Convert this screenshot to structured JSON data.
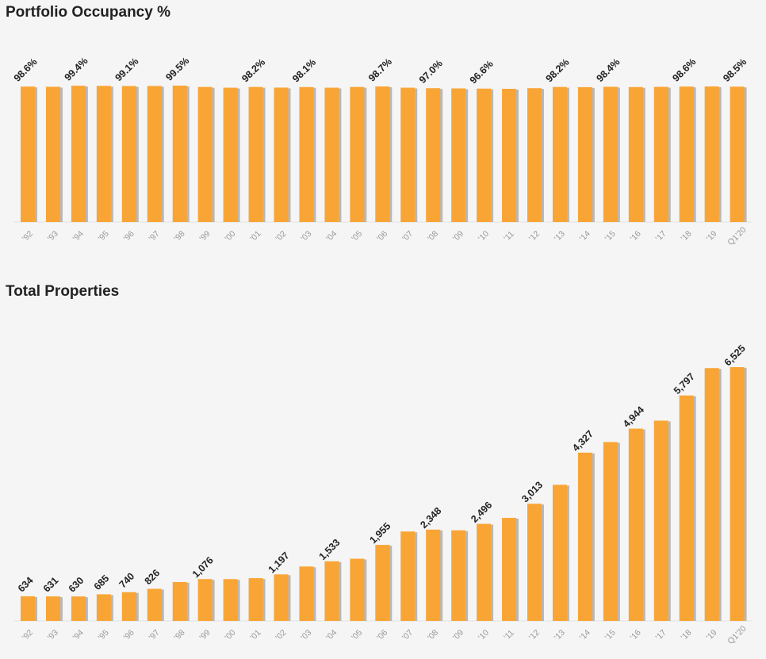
{
  "chart_data": [
    {
      "type": "bar",
      "title": "Portfolio Occupancy %",
      "categories": [
        "'92",
        "'93",
        "'94",
        "'95",
        "'96",
        "'97",
        "'98",
        "'99",
        "'00",
        "'01",
        "'02",
        "'03",
        "'04",
        "'05",
        "'06",
        "'07",
        "'08",
        "'09",
        "'10",
        "'11",
        "'12",
        "'13",
        "'14",
        "'15",
        "'16",
        "'17",
        "'18",
        "'19",
        "Q1'20"
      ],
      "values": [
        98.6,
        98.4,
        99.4,
        99.3,
        99.1,
        99.2,
        99.5,
        98.2,
        97.5,
        98.2,
        97.6,
        98.1,
        97.5,
        98.2,
        98.7,
        97.5,
        97.0,
        96.8,
        96.6,
        96.4,
        97.0,
        98.2,
        98.0,
        98.4,
        98.1,
        98.3,
        98.6,
        98.7,
        98.5
      ],
      "data_labels": [
        "98.6%",
        "",
        "99.4%",
        "",
        "99.1%",
        "",
        "99.5%",
        "",
        "",
        "98.2%",
        "",
        "98.1%",
        "",
        "",
        "98.7%",
        "",
        "97.0%",
        "",
        "96.6%",
        "",
        "",
        "98.2%",
        "",
        "98.4%",
        "",
        "",
        "98.6%",
        "",
        "98.5%"
      ],
      "xlabel": "",
      "ylabel": "",
      "grid": false
    },
    {
      "type": "bar",
      "title": "Total Properties",
      "categories": [
        "'92",
        "'93",
        "'94",
        "'95",
        "'96",
        "'97",
        "'98",
        "'99",
        "'00",
        "'01",
        "'02",
        "'03",
        "'04",
        "'05",
        "'06",
        "'07",
        "'08",
        "'09",
        "'10",
        "'11",
        "'12",
        "'13",
        "'14",
        "'15",
        "'16",
        "'17",
        "'18",
        "'19",
        "Q1'20"
      ],
      "values": [
        634,
        631,
        630,
        685,
        740,
        826,
        1000,
        1076,
        1075,
        1100,
        1197,
        1400,
        1533,
        1600,
        1955,
        2300,
        2348,
        2330,
        2496,
        2650,
        3013,
        3500,
        4327,
        4600,
        4944,
        5150,
        5797,
        6500,
        6525
      ],
      "data_labels": [
        "634",
        "631",
        "630",
        "685",
        "740",
        "826",
        "",
        "1,076",
        "",
        "",
        "1,197",
        "",
        "1,533",
        "",
        "1,955",
        "",
        "2,348",
        "",
        "2,496",
        "",
        "3,013",
        "",
        "4,327",
        "",
        "4,944",
        "",
        "5,797",
        "",
        "6,525"
      ],
      "xlabel": "",
      "ylabel": "",
      "ylim": [
        0,
        6525
      ],
      "grid": false
    }
  ],
  "colors": {
    "bar": "#f9a535",
    "shadow": "#b8b8b8",
    "label": "#222222",
    "tick": "#999999"
  }
}
